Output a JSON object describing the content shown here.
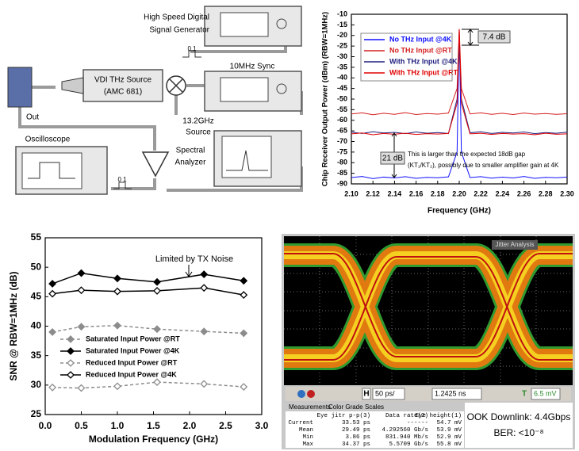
{
  "diagram": {
    "generator": [
      "High Speed Digital",
      "Signal Generator"
    ],
    "sync": "10MHz Sync",
    "thz_source": [
      "VDI THz Source",
      "(AMC 681)"
    ],
    "lo_source": [
      "13.2GHz",
      "Source"
    ],
    "out": "Out",
    "oscilloscope": "Oscilloscope",
    "analyzer": [
      "Spectral",
      "Analyzer"
    ],
    "pulse_labels": [
      "0 1",
      "0 1"
    ]
  },
  "chart_data": [
    {
      "type": "line",
      "y_label": "Chip Receiver Output Power (dBm) (RBW=1MHz)",
      "x_label": "Frequency (GHz)",
      "x": [
        2.1,
        2.11,
        2.12,
        2.13,
        2.14,
        2.15,
        2.16,
        2.17,
        2.18,
        2.19,
        2.198,
        2.2,
        2.202,
        2.21,
        2.22,
        2.23,
        2.24,
        2.25,
        2.26,
        2.27,
        2.28,
        2.29,
        2.3
      ],
      "series": [
        {
          "name": "No THz Input @4K",
          "color": "#1010ff",
          "values": [
            -87,
            -86.5,
            -87.5,
            -86.8,
            -87.2,
            -86.6,
            -87.4,
            -86.9,
            -87.1,
            -86.7,
            -75,
            -17,
            -75,
            -87,
            -86.6,
            -87.3,
            -86.8,
            -87.2,
            -86.5,
            -87.4,
            -86.9,
            -87.1,
            -86.8
          ]
        },
        {
          "name": "No THz Input @RT",
          "color": "#d42020",
          "values": [
            -57,
            -56.5,
            -57.4,
            -56.7,
            -57.2,
            -56.4,
            -57.3,
            -56.8,
            -57.1,
            -56.6,
            -45,
            -17,
            -45,
            -57,
            -56.5,
            -57.2,
            -56.7,
            -57.3,
            -56.6,
            -57.1,
            -56.8,
            -57.2,
            -56.9
          ]
        },
        {
          "name": "With THz Input @4K",
          "color": "#202080",
          "values": [
            -65.6,
            -66.2,
            -65.4,
            -66,
            -65.7,
            -66.3,
            -65.5,
            -66.1,
            -65.8,
            -66.2,
            -50,
            -24.4,
            -50,
            -65.9,
            -65.4,
            -66.2,
            -65.7,
            -66,
            -65.5,
            -66.3,
            -65.8,
            -66.1,
            -65.6
          ]
        },
        {
          "name": "With THz Input @RT",
          "color": "#e00000",
          "values": [
            -66.4,
            -66,
            -66.8,
            -66.2,
            -66.6,
            -66.1,
            -66.7,
            -66.3,
            -66.5,
            -66.2,
            -52,
            -17,
            -52,
            -66.4,
            -66.1,
            -66.7,
            -66.2,
            -66.5,
            -66.3,
            -66.8,
            -66.1,
            -66.6,
            -66.4
          ]
        }
      ],
      "xlim": [
        2.1,
        2.3
      ],
      "xticks": [
        {
          "value": 2.1,
          "label": "2.10"
        },
        2.12,
        2.14,
        2.16,
        2.18,
        {
          "value": 2.2,
          "label": "2.20"
        },
        2.22,
        2.24,
        2.26,
        2.28,
        {
          "value": 2.3,
          "label": "2.30"
        }
      ],
      "ylim": [
        -90,
        -10
      ],
      "yticks": [
        -90,
        -85,
        -80,
        -75,
        -70,
        -65,
        -60,
        -55,
        -50,
        -45,
        -40,
        -35,
        -30,
        -25,
        -20,
        -15,
        -10
      ],
      "grid": false,
      "annotations": [
        "7.4 dB",
        "21 dB",
        "This is larger than the expected 18dB gap",
        "(KT₁/KT₂), possibly due to smaller amplifier gain at 4K"
      ]
    },
    {
      "type": "line",
      "y_label": "SNR @ RBW=1MHz (dB)",
      "x_label": "Modulation Frequency (GHz)",
      "x": [
        0.1,
        0.5,
        1.0,
        1.55,
        2.2,
        2.75
      ],
      "series": [
        {
          "name": "Saturated Input Power @RT",
          "color": "#8c8c8c",
          "dashed": true,
          "filled": true,
          "values": [
            39,
            39.9,
            40.1,
            39.5,
            39.1,
            38.8
          ]
        },
        {
          "name": "Saturated Input Power @4K",
          "color": "#000000",
          "dashed": false,
          "filled": true,
          "values": [
            47.2,
            49,
            48.1,
            47.5,
            48.8,
            47.7
          ]
        },
        {
          "name": "Reduced Input Power @RT",
          "color": "#8c8c8c",
          "dashed": true,
          "filled": false,
          "values": [
            29.6,
            29.5,
            29.8,
            30.5,
            30.2,
            29.7
          ]
        },
        {
          "name": "Reduced Input Power @4K",
          "color": "#000000",
          "dashed": false,
          "filled": false,
          "values": [
            45.5,
            46.1,
            45.9,
            46,
            46.5,
            45.3
          ]
        }
      ],
      "xlim": [
        0,
        3
      ],
      "xticks": [
        {
          "value": 0,
          "label": "0.0"
        },
        0.5,
        {
          "value": 1,
          "label": "1.0"
        },
        1.5,
        {
          "value": 2,
          "label": "2.0"
        },
        2.5,
        {
          "value": 3,
          "label": "3.0"
        }
      ],
      "ylim": [
        25,
        55
      ],
      "yticks": [
        25,
        30,
        35,
        40,
        45,
        50,
        55
      ],
      "grid": false,
      "annotations": [
        "Limited by TX Noise"
      ]
    }
  ],
  "scope": {
    "panel": "Jitter Analysis",
    "toolbar": [
      "H",
      "50 ps/",
      "1.2425 ns",
      "T",
      "6.5 mV"
    ],
    "tabs": [
      "Measurements",
      "Color Grade",
      "Scales"
    ],
    "table": {
      "header": [
        "Eye jitr p-p(3)",
        "Data rate(2)",
        "Eye height(1)"
      ],
      "rows": [
        [
          "Current",
          "33.53 ps",
          "------",
          "54.7 mV"
        ],
        [
          "Mean",
          "29.49 ps",
          "4.292560 Gb/s",
          "53.9 mV"
        ],
        [
          "Min",
          "3.86 ps",
          "831.940 Mb/s",
          "52.9 mV"
        ],
        [
          "Max",
          "34.37 ps",
          "5.5709 Gb/s",
          "55.8 mV"
        ]
      ]
    },
    "overlay": [
      "OOK Downlink: 4.4Gbps",
      "BER: <10⁻⁸"
    ]
  }
}
